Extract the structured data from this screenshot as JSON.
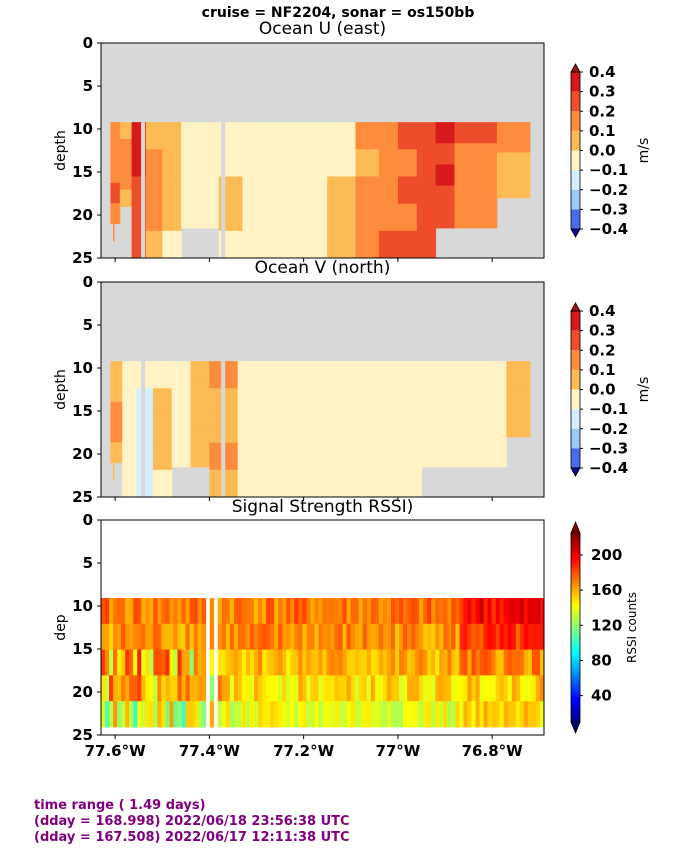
{
  "suptitle": "cruise = NF2204,  sonar = os150bb",
  "x_tick_labels": [
    "77.6°W",
    "77.4°W",
    "77.2°W",
    "77°W",
    "76.8°W"
  ],
  "footer": {
    "line1": "time range ( 1.49 days)",
    "line2": "(dday = 168.998) 2022/06/18 23:56:38 UTC",
    "line3": "(dday = 167.508) 2022/06/17 12:11:38 UTC"
  },
  "colors": {
    "nodata": "#d8d8d8",
    "footer_text": "#800080"
  },
  "chart_data": [
    {
      "type": "heatmap",
      "title": "Ocean U (east)",
      "xlabel": "",
      "ylabel": "depth",
      "xlim": [
        -77.63,
        -76.69
      ],
      "ylim": [
        25,
        0
      ],
      "yticks": [
        0,
        5,
        10,
        15,
        20,
        25
      ],
      "xticks": [
        -77.6,
        -77.4,
        -77.2,
        -77.0,
        -76.8
      ],
      "colorbar": {
        "label": "m/s",
        "ticks": [
          "0.4",
          "0.3",
          "0.2",
          "0.1",
          "0.0",
          "−0.1",
          "−0.2",
          "−0.3",
          "−0.4"
        ],
        "levels": [
          0.4,
          0.3,
          0.2,
          0.1,
          0.0,
          -0.1,
          -0.2,
          -0.3,
          -0.4
        ],
        "bands": [
          "#d7191c",
          "#ee4d2c",
          "#fd8d3c",
          "#fdbb55",
          "#fff3c6",
          "#d6efff",
          "#9ecbf5",
          "#4a6bf0",
          "#1a1adb"
        ]
      },
      "valid_top_depth": 9.2,
      "columns": [
        {
          "x": -77.62,
          "u": 0.1,
          "bottom": 23
        },
        {
          "x": -77.6,
          "u": 0.2,
          "bottom": 21
        },
        {
          "x": -77.58,
          "u": 0.1,
          "bottom": 19
        },
        {
          "x": -77.55,
          "u": 0.3,
          "bottom": 25
        },
        {
          "x": -77.52,
          "u": 0.1,
          "bottom": 25
        },
        {
          "x": -77.48,
          "u": 0.0,
          "bottom": 25
        },
        {
          "x": -77.44,
          "u": -0.05,
          "bottom": 21.5
        },
        {
          "x": -77.4,
          "u": -0.05,
          "bottom": 21.5
        },
        {
          "x": -77.36,
          "u": 0.0,
          "bottom": 25
        },
        {
          "x": -77.3,
          "u": -0.05,
          "bottom": 25
        },
        {
          "x": -77.24,
          "u": -0.05,
          "bottom": 25
        },
        {
          "x": -77.18,
          "u": -0.05,
          "bottom": 25
        },
        {
          "x": -77.12,
          "u": 0.0,
          "bottom": 25
        },
        {
          "x": -77.06,
          "u": 0.1,
          "bottom": 25
        },
        {
          "x": -77.02,
          "u": 0.2,
          "bottom": 25
        },
        {
          "x": -76.98,
          "u": 0.2,
          "bottom": 25
        },
        {
          "x": -76.94,
          "u": 0.25,
          "bottom": 25
        },
        {
          "x": -76.9,
          "u": 0.3,
          "bottom": 21.5
        },
        {
          "x": -76.86,
          "u": 0.2,
          "bottom": 21.5
        },
        {
          "x": -76.82,
          "u": 0.2,
          "bottom": 21.5
        },
        {
          "x": -76.76,
          "u": 0.1,
          "bottom": 18
        }
      ]
    },
    {
      "type": "heatmap",
      "title": "Ocean V (north)",
      "xlabel": "",
      "ylabel": "depth",
      "xlim": [
        -77.63,
        -76.69
      ],
      "ylim": [
        25,
        0
      ],
      "yticks": [
        0,
        5,
        10,
        15,
        20,
        25
      ],
      "xticks": [
        -77.6,
        -77.4,
        -77.2,
        -77.0,
        -76.8
      ],
      "colorbar": {
        "label": "m/s",
        "ticks": [
          "0.4",
          "0.3",
          "0.2",
          "0.1",
          "0.0",
          "−0.1",
          "−0.2",
          "−0.3",
          "−0.4"
        ],
        "levels": [
          0.4,
          0.3,
          0.2,
          0.1,
          0.0,
          -0.1,
          -0.2,
          -0.3,
          -0.4
        ],
        "bands": [
          "#d7191c",
          "#ee4d2c",
          "#fd8d3c",
          "#fdbb55",
          "#fff3c6",
          "#d6efff",
          "#9ecbf5",
          "#4a6bf0",
          "#1a1adb"
        ]
      },
      "valid_top_depth": 9.2,
      "columns": [
        {
          "x": -77.62,
          "v": 0.05,
          "bottom": 23
        },
        {
          "x": -77.6,
          "v": 0.1,
          "bottom": 21
        },
        {
          "x": -77.57,
          "v": -0.05,
          "bottom": 25
        },
        {
          "x": -77.54,
          "v": -0.1,
          "bottom": 25
        },
        {
          "x": -77.5,
          "v": 0.0,
          "bottom": 25
        },
        {
          "x": -77.46,
          "v": -0.05,
          "bottom": 21.5
        },
        {
          "x": -77.42,
          "v": 0.05,
          "bottom": 21.5
        },
        {
          "x": -77.38,
          "v": 0.1,
          "bottom": 25
        },
        {
          "x": -77.3,
          "v": -0.05,
          "bottom": 25
        },
        {
          "x": -77.2,
          "v": -0.05,
          "bottom": 25
        },
        {
          "x": -77.1,
          "v": -0.05,
          "bottom": 25
        },
        {
          "x": -77.0,
          "v": -0.05,
          "bottom": 25
        },
        {
          "x": -76.9,
          "v": -0.05,
          "bottom": 21.5
        },
        {
          "x": -76.8,
          "v": -0.05,
          "bottom": 21.5
        },
        {
          "x": -76.74,
          "v": 0.05,
          "bottom": 18
        }
      ]
    },
    {
      "type": "heatmap",
      "title": "Signal Strength RSSI)",
      "xlabel": "",
      "ylabel": "dep",
      "xlim": [
        -77.63,
        -76.69
      ],
      "ylim": [
        25,
        0
      ],
      "yticks": [
        0,
        5,
        10,
        15,
        20,
        25
      ],
      "xticks": [
        -77.6,
        -77.4,
        -77.2,
        -77.0,
        -76.8
      ],
      "colorbar": {
        "label": "RSSI counts",
        "ticks": [
          "200",
          "160",
          "120",
          "80",
          "40"
        ],
        "levels": [
          200,
          160,
          120,
          80,
          40
        ],
        "vmin": 10,
        "vmax": 225
      },
      "depth_bins": [
        10,
        13,
        16,
        19,
        22,
        25
      ],
      "gaps_x": [
        -77.41,
        -77.385
      ],
      "rows": [
        {
          "depth": 10.5,
          "mean": 172,
          "east": 198
        },
        {
          "depth": 13.5,
          "mean": 168,
          "east": 185
        },
        {
          "depth": 16.5,
          "mean": 160,
          "east": 170
        },
        {
          "depth": 19.5,
          "mean": 150,
          "east": 155
        },
        {
          "depth": 22.5,
          "mean": 140,
          "east": 150
        }
      ]
    }
  ]
}
